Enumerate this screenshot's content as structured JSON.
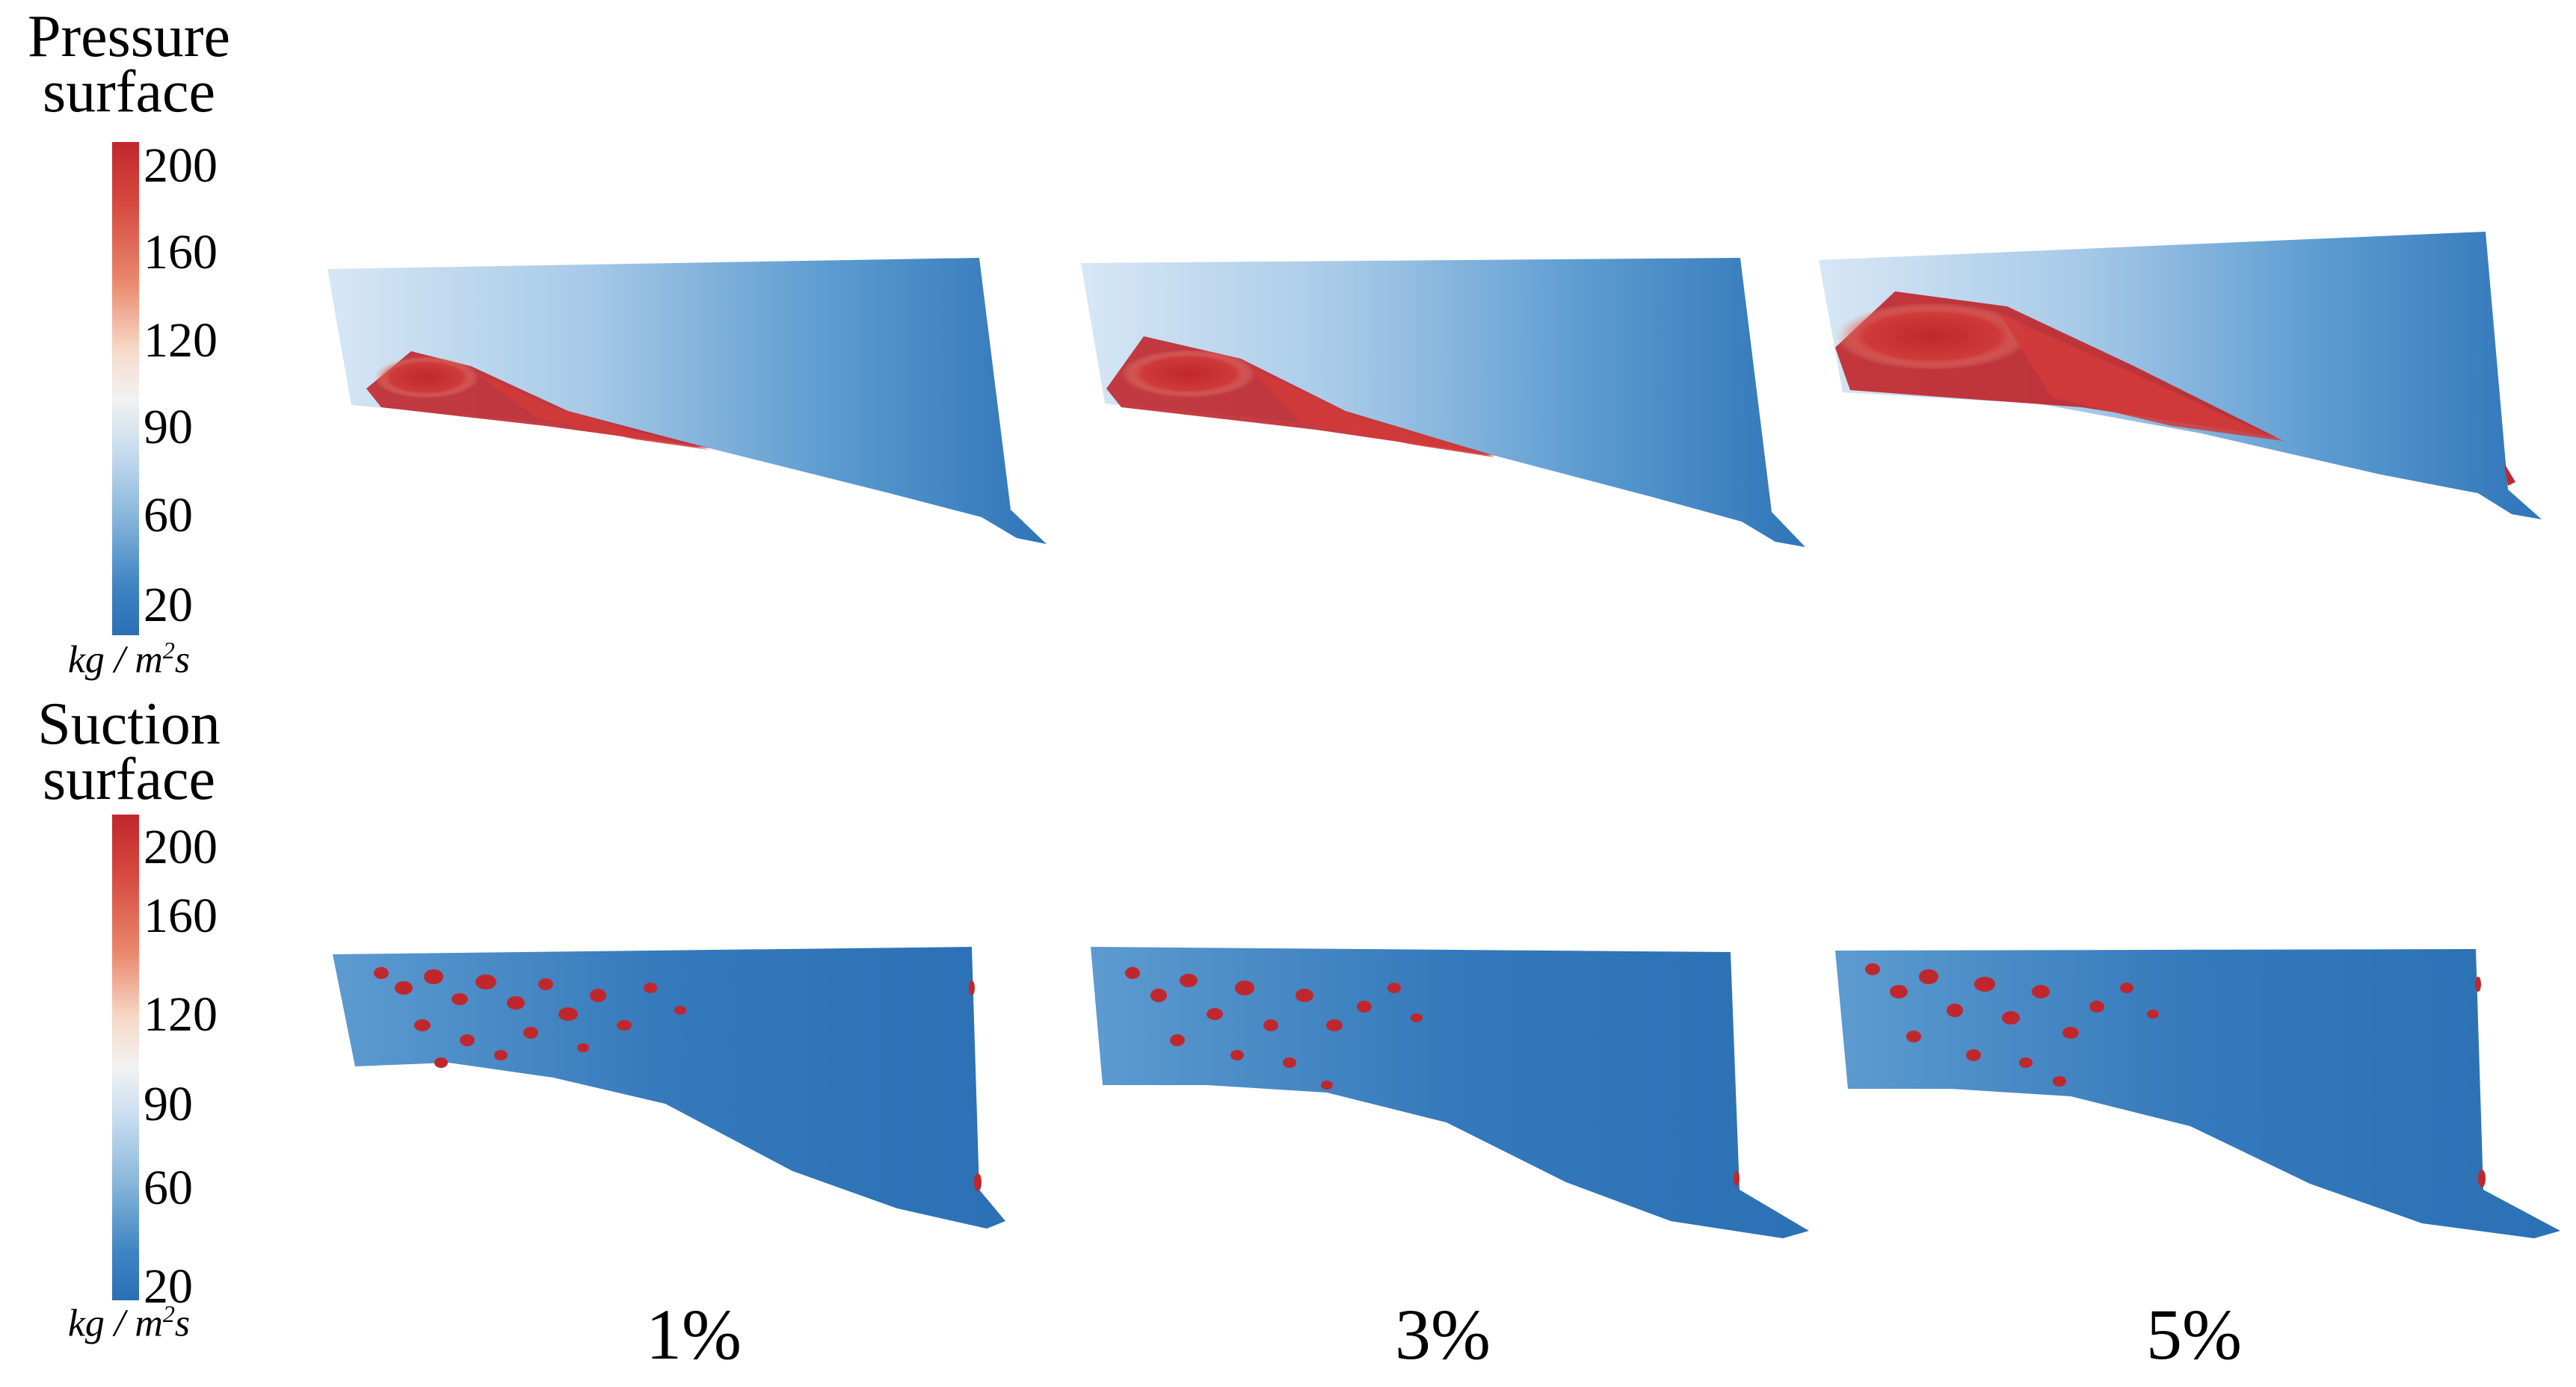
{
  "pressure_panel": {
    "title_line1": "Pressure",
    "title_line2": "surface",
    "colorbar_ticks": [
      "200",
      "160",
      "120",
      "90",
      "60",
      "20"
    ],
    "unit_main": "kg / m",
    "unit_exp": "2",
    "unit_tail": "s"
  },
  "suction_panel": {
    "title_line1": "Suction",
    "title_line2": "surface",
    "colorbar_ticks": [
      "200",
      "160",
      "120",
      "90",
      "60",
      "20"
    ],
    "unit_main": "kg / m",
    "unit_exp": "2",
    "unit_tail": "s"
  },
  "cases": [
    "1%",
    "3%",
    "5%"
  ],
  "colors": {
    "high": "#c0272d",
    "mid": "#f2f2f2",
    "low": "#2a6fb5"
  },
  "colorbar_range": {
    "min": 20,
    "max": 200
  }
}
